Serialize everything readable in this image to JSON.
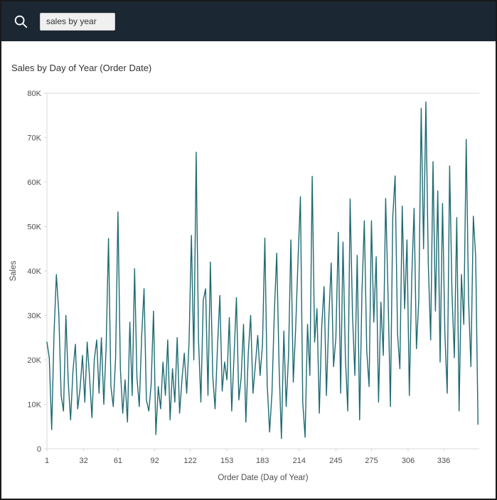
{
  "colors": {
    "header_bg": "#1b2733",
    "panel_bg": "#ffffff",
    "axis_text": "#4e4e4e"
  },
  "search": {
    "value": "sales by year",
    "icon": "magnifier-icon"
  },
  "chart_data": {
    "type": "line",
    "title": "Sales by Day of Year (Order Date)",
    "xlabel": "Order Date (Day of Year)",
    "ylabel": "Sales",
    "xlim": [
      1,
      366
    ],
    "ylim": [
      0,
      80000
    ],
    "grid": false,
    "legend": "none",
    "line_color": "#1e6a73",
    "x_ticks": [
      {
        "value": 1,
        "label": "1"
      },
      {
        "value": 32,
        "label": "32"
      },
      {
        "value": 61,
        "label": "61"
      },
      {
        "value": 92,
        "label": "92"
      },
      {
        "value": 122,
        "label": "122"
      },
      {
        "value": 153,
        "label": "153"
      },
      {
        "value": 183,
        "label": "183"
      },
      {
        "value": 214,
        "label": "214"
      },
      {
        "value": 245,
        "label": "245"
      },
      {
        "value": 275,
        "label": "275"
      },
      {
        "value": 306,
        "label": "306"
      },
      {
        "value": 336,
        "label": "336"
      }
    ],
    "y_ticks": [
      {
        "value": 0,
        "label": "0"
      },
      {
        "value": 10000,
        "label": "10K"
      },
      {
        "value": 20000,
        "label": "20K"
      },
      {
        "value": 30000,
        "label": "30K"
      },
      {
        "value": 40000,
        "label": "40K"
      },
      {
        "value": 50000,
        "label": "50K"
      },
      {
        "value": 60000,
        "label": "60K"
      },
      {
        "value": 70000,
        "label": "70K"
      },
      {
        "value": 80000,
        "label": "80K"
      }
    ],
    "series": [
      {
        "name": "Sales",
        "x_start": 1,
        "x_step": 2,
        "values": [
          24000,
          20500,
          4300,
          26000,
          39200,
          30500,
          12000,
          8500,
          30000,
          15000,
          6500,
          17500,
          23500,
          9000,
          13500,
          21000,
          10500,
          24000,
          16000,
          7000,
          20000,
          24500,
          12500,
          25000,
          10000,
          23000,
          47300,
          14000,
          9500,
          20500,
          53300,
          18000,
          8000,
          15500,
          6000,
          28500,
          12000,
          40500,
          16000,
          9500,
          25500,
          36000,
          11000,
          8500,
          14500,
          31000,
          3200,
          14000,
          9000,
          19500,
          12000,
          24500,
          6500,
          18000,
          10500,
          25000,
          8000,
          15500,
          21500,
          12500,
          24000,
          48000,
          20000,
          66700,
          24500,
          10500,
          33500,
          36000,
          12000,
          42000,
          16500,
          9000,
          23000,
          34500,
          13000,
          19500,
          15500,
          29500,
          8500,
          21000,
          34000,
          11000,
          16000,
          28000,
          6000,
          21500,
          30000,
          12500,
          19000,
          25500,
          16500,
          23500,
          47400,
          14500,
          3800,
          12500,
          30500,
          44000,
          18500,
          2300,
          26500,
          9500,
          21000,
          47000,
          15000,
          27000,
          42200,
          56700,
          10500,
          2600,
          28000,
          16500,
          61300,
          24000,
          31500,
          8000,
          27500,
          36500,
          12000,
          29000,
          41800,
          18500,
          25000,
          48700,
          12500,
          46500,
          20500,
          8500,
          56200,
          30000,
          16500,
          43500,
          6500,
          35500,
          51300,
          22000,
          14000,
          51300,
          28500,
          43200,
          10500,
          33000,
          21000,
          56300,
          35000,
          9500,
          52200,
          61400,
          26000,
          18000,
          54600,
          31500,
          47000,
          12000,
          38500,
          54100,
          22500,
          33500,
          76600,
          45000,
          78000,
          41500,
          24500,
          64600,
          31000,
          58000,
          19500,
          55200,
          26000,
          12500,
          63600,
          35000,
          20500,
          52000,
          8500,
          39200,
          28000,
          69600,
          33500,
          18500,
          52300,
          43200,
          5500
        ]
      }
    ]
  }
}
